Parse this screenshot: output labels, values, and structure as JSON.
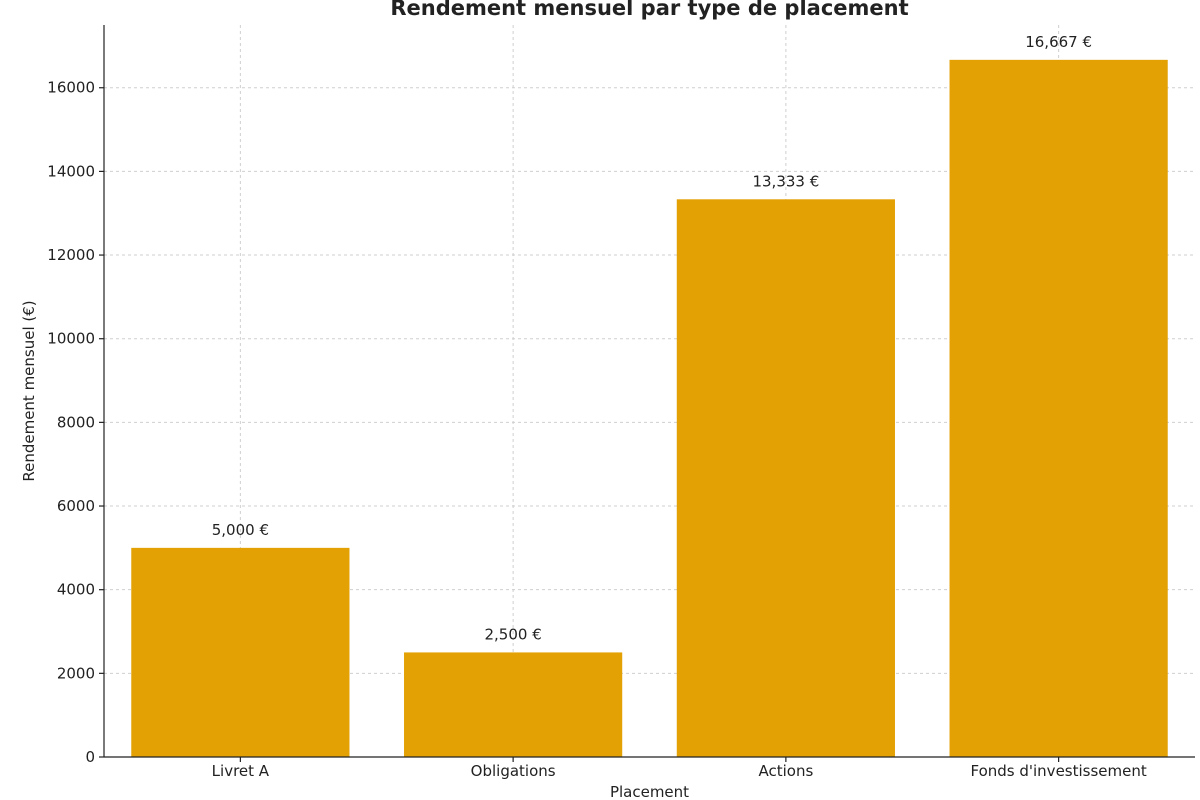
{
  "chart_data": {
    "type": "bar",
    "title": "Rendement mensuel par type de placement",
    "xlabel": "Placement",
    "ylabel": "Rendement mensuel (€)",
    "categories": [
      "Livret A",
      "Obligations",
      "Actions",
      "Fonds d'investissement"
    ],
    "values": [
      5000,
      2500,
      13333,
      16667
    ],
    "data_labels": [
      "5,000 €",
      "2,500 €",
      "13,333 €",
      "16,667 €"
    ],
    "yticks": [
      0,
      2000,
      4000,
      6000,
      8000,
      10000,
      12000,
      14000,
      16000
    ],
    "ylim": [
      0,
      17500
    ],
    "grid": true,
    "bar_color": "#E3A103"
  }
}
